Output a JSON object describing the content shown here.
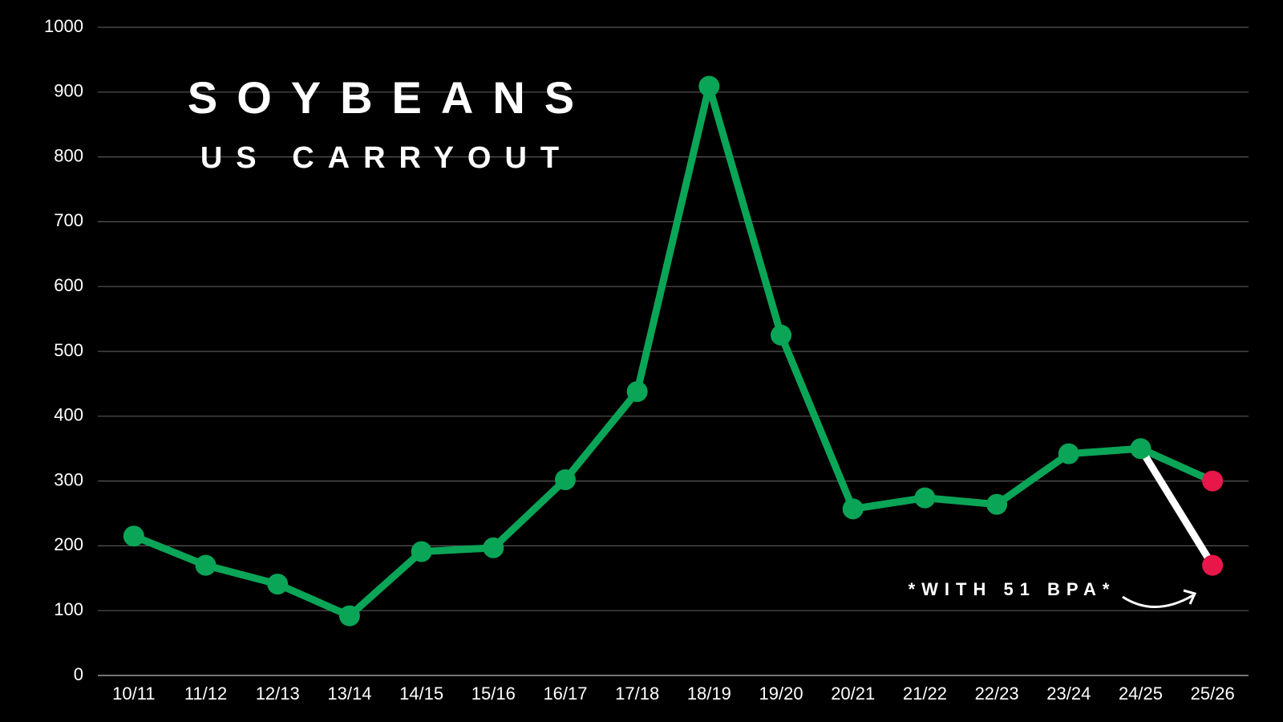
{
  "chart_data": {
    "type": "line",
    "title": "SOYBEANS",
    "subtitle": "US CARRYOUT",
    "annotation": "*WITH 51 BPA*",
    "categories": [
      "10/11",
      "11/12",
      "12/13",
      "13/14",
      "14/15",
      "15/16",
      "16/17",
      "17/18",
      "18/19",
      "19/20",
      "20/21",
      "21/22",
      "22/23",
      "23/24",
      "24/25",
      "25/26"
    ],
    "series": [
      {
        "color": "#0aa557",
        "last_marker_color": "#e8174a",
        "markers": "all",
        "values": [
          215,
          170,
          141,
          92,
          191,
          197,
          302,
          438,
          909,
          525,
          257,
          274,
          264,
          342,
          350,
          300
        ]
      },
      {
        "color": "#ffffff",
        "last_marker_color": "#e8174a",
        "markers": "last",
        "values": [
          null,
          null,
          null,
          null,
          null,
          null,
          null,
          null,
          null,
          null,
          null,
          null,
          null,
          null,
          350,
          170
        ]
      }
    ],
    "ylim": [
      0,
      1000
    ],
    "yticks": [
      0,
      100,
      200,
      300,
      400,
      500,
      600,
      700,
      800,
      900,
      1000
    ],
    "grid": true
  }
}
